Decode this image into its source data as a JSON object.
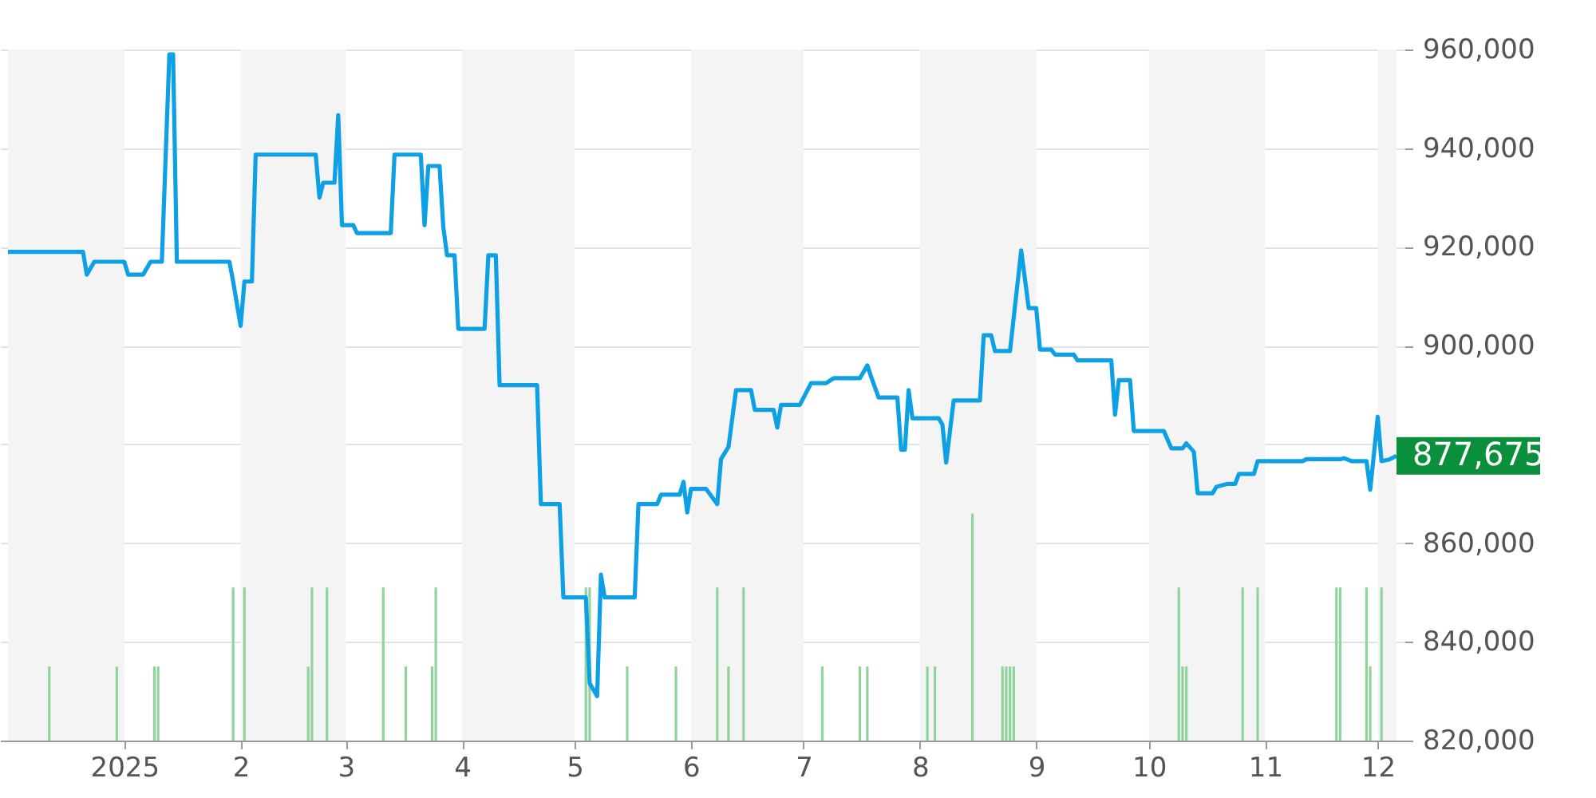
{
  "chart_data": {
    "type": "line",
    "xlim": [
      "2024-12-01",
      "2025-12-06"
    ],
    "xticks": [
      {
        "value": "2025-01-01",
        "label": "2025"
      },
      {
        "value": "2025-02-01",
        "label": "2"
      },
      {
        "value": "2025-03-01",
        "label": "3"
      },
      {
        "value": "2025-04-01",
        "label": "4"
      },
      {
        "value": "2025-05-01",
        "label": "5"
      },
      {
        "value": "2025-06-01",
        "label": "6"
      },
      {
        "value": "2025-07-01",
        "label": "7"
      },
      {
        "value": "2025-08-01",
        "label": "8"
      },
      {
        "value": "2025-09-01",
        "label": "9"
      },
      {
        "value": "2025-10-01",
        "label": "10"
      },
      {
        "value": "2025-11-01",
        "label": "11"
      },
      {
        "value": "2025-12-01",
        "label": "12"
      }
    ],
    "ylim": [
      820000,
      960000
    ],
    "yticks": [
      {
        "value": 820000,
        "label": "820,000"
      },
      {
        "value": 840000,
        "label": "840,000"
      },
      {
        "value": 860000,
        "label": "860,000"
      },
      {
        "value": 880000,
        "label": null
      },
      {
        "value": 900000,
        "label": "900,000"
      },
      {
        "value": 920000,
        "label": "920,000"
      },
      {
        "value": 940000,
        "label": "940,000"
      },
      {
        "value": 960000,
        "label": "960,000"
      }
    ],
    "grid": "y",
    "line_style": "solid",
    "marker": "none",
    "bands": [
      {
        "axis": "x",
        "from": "2024-12-01",
        "to": "2025-01-01",
        "label": null,
        "color": "#f4f4f4"
      },
      {
        "axis": "x",
        "from": "2025-02-01",
        "to": "2025-03-01",
        "label": null,
        "color": "#f4f4f4"
      },
      {
        "axis": "x",
        "from": "2025-04-01",
        "to": "2025-05-01",
        "label": null,
        "color": "#f4f4f4"
      },
      {
        "axis": "x",
        "from": "2025-06-01",
        "to": "2025-07-01",
        "label": null,
        "color": "#f4f4f4"
      },
      {
        "axis": "x",
        "from": "2025-08-01",
        "to": "2025-09-01",
        "label": null,
        "color": "#f4f4f4"
      },
      {
        "axis": "x",
        "from": "2025-10-01",
        "to": "2025-11-01",
        "label": null,
        "color": "#f4f4f4"
      },
      {
        "axis": "x",
        "from": "2025-12-01",
        "to": "2025-12-06",
        "label": null,
        "color": "#f4f4f4"
      }
    ],
    "annotations": [
      {
        "text": "877,675",
        "x": "2025-12-06",
        "y": 877675
      }
    ],
    "series": [
      {
        "type": "bar",
        "color": "#8fd49a",
        "x": [
          "2024-12-12",
          "2024-12-30",
          "2025-01-09",
          "2025-01-10",
          "2025-01-30",
          "2025-02-02",
          "2025-02-19",
          "2025-02-20",
          "2025-02-24",
          "2025-03-11",
          "2025-03-17",
          "2025-03-24",
          "2025-03-25",
          "2025-05-04",
          "2025-05-05",
          "2025-05-15",
          "2025-05-28",
          "2025-06-08",
          "2025-06-11",
          "2025-06-15",
          "2025-07-06",
          "2025-07-16",
          "2025-07-18",
          "2025-08-03",
          "2025-08-05",
          "2025-08-15",
          "2025-08-23",
          "2025-08-24",
          "2025-08-25",
          "2025-08-26",
          "2025-10-09",
          "2025-10-10",
          "2025-10-11",
          "2025-10-26",
          "2025-10-30",
          "2025-11-20",
          "2025-11-21",
          "2025-11-28",
          "2025-11-29",
          "2025-12-02"
        ],
        "values": [
          835000,
          835000,
          835000,
          835000,
          851000,
          851000,
          835000,
          851000,
          851000,
          851000,
          835000,
          835000,
          851000,
          851000,
          851000,
          835000,
          835000,
          851000,
          835000,
          851000,
          835000,
          835000,
          835000,
          835000,
          835000,
          866000,
          835000,
          835000,
          835000,
          835000,
          851000,
          835000,
          835000,
          851000,
          851000,
          851000,
          851000,
          851000,
          835000,
          851000
        ]
      },
      {
        "color": "#0ea0e4",
        "x": [
          "2024-12-01",
          "2024-12-21",
          "2024-12-22",
          "2024-12-24",
          "2025-01-01",
          "2025-01-02",
          "2025-01-06",
          "2025-01-08",
          "2025-01-11",
          "2025-01-13",
          "2025-01-14",
          "2025-01-15",
          "2025-01-29",
          "2025-01-30",
          "2025-02-01",
          "2025-02-02",
          "2025-02-04",
          "2025-02-05",
          "2025-02-21",
          "2025-02-22",
          "2025-02-23",
          "2025-02-26",
          "2025-02-27",
          "2025-02-28",
          "2025-03-03",
          "2025-03-04",
          "2025-03-13",
          "2025-03-14",
          "2025-03-21",
          "2025-03-22",
          "2025-03-23",
          "2025-03-26",
          "2025-03-27",
          "2025-03-28",
          "2025-03-30",
          "2025-03-31",
          "2025-04-07",
          "2025-04-08",
          "2025-04-10",
          "2025-04-11",
          "2025-04-21",
          "2025-04-22",
          "2025-04-27",
          "2025-04-28",
          "2025-05-04",
          "2025-05-05",
          "2025-05-07",
          "2025-05-08",
          "2025-05-09",
          "2025-05-17",
          "2025-05-18",
          "2025-05-23",
          "2025-05-24",
          "2025-05-29",
          "2025-05-30",
          "2025-05-31",
          "2025-06-01",
          "2025-06-05",
          "2025-06-08",
          "2025-06-09",
          "2025-06-11",
          "2025-06-13",
          "2025-06-17",
          "2025-06-18",
          "2025-06-23",
          "2025-06-24",
          "2025-06-25",
          "2025-06-30",
          "2025-07-03",
          "2025-07-07",
          "2025-07-09",
          "2025-07-16",
          "2025-07-18",
          "2025-07-19",
          "2025-07-21",
          "2025-07-26",
          "2025-07-27",
          "2025-07-28",
          "2025-07-29",
          "2025-07-30",
          "2025-08-06",
          "2025-08-07",
          "2025-08-08",
          "2025-08-10",
          "2025-08-17",
          "2025-08-18",
          "2025-08-20",
          "2025-08-21",
          "2025-08-25",
          "2025-08-27",
          "2025-08-28",
          "2025-08-30",
          "2025-09-01",
          "2025-09-02",
          "2025-09-05",
          "2025-09-06",
          "2025-09-11",
          "2025-09-12",
          "2025-09-21",
          "2025-09-22",
          "2025-09-23",
          "2025-09-26",
          "2025-09-27",
          "2025-10-05",
          "2025-10-07",
          "2025-10-10",
          "2025-10-11",
          "2025-10-13",
          "2025-10-14",
          "2025-10-18",
          "2025-10-19",
          "2025-10-22",
          "2025-10-24",
          "2025-10-25",
          "2025-10-29",
          "2025-10-30",
          "2025-11-02",
          "2025-11-11",
          "2025-11-12",
          "2025-11-21",
          "2025-11-22",
          "2025-11-24",
          "2025-11-28",
          "2025-11-29",
          "2025-12-01",
          "2025-12-02",
          "2025-12-04",
          "2025-12-06"
        ],
        "values": [
          919000,
          919000,
          914400,
          917000,
          917000,
          914400,
          914400,
          917000,
          917000,
          959000,
          959000,
          917000,
          917000,
          913000,
          904000,
          913000,
          913000,
          938700,
          938700,
          930000,
          933000,
          933000,
          946700,
          924400,
          924400,
          922800,
          922800,
          938700,
          938700,
          924400,
          936400,
          936400,
          924000,
          918300,
          918300,
          903400,
          903400,
          918300,
          918300,
          892000,
          892000,
          867900,
          867900,
          849000,
          849000,
          831600,
          829000,
          853600,
          849000,
          849000,
          867900,
          867900,
          869800,
          869800,
          872400,
          866200,
          871000,
          871000,
          867900,
          877000,
          879500,
          891000,
          891000,
          887000,
          887000,
          883400,
          888000,
          888000,
          892400,
          892400,
          893400,
          893400,
          896000,
          893700,
          889500,
          889500,
          878900,
          878900,
          891000,
          885300,
          885300,
          884000,
          876300,
          888900,
          888900,
          902100,
          902100,
          898900,
          898900,
          912500,
          919300,
          907600,
          907600,
          899200,
          899200,
          898200,
          898200,
          897000,
          897000,
          886000,
          893000,
          893000,
          882700,
          882700,
          879200,
          879200,
          880200,
          878500,
          870100,
          870100,
          871400,
          872000,
          872000,
          874000,
          874000,
          876600,
          876600,
          876600,
          877000,
          877000,
          877200,
          876600,
          876600,
          870800,
          885600,
          876600,
          876900,
          877675
        ]
      }
    ]
  }
}
